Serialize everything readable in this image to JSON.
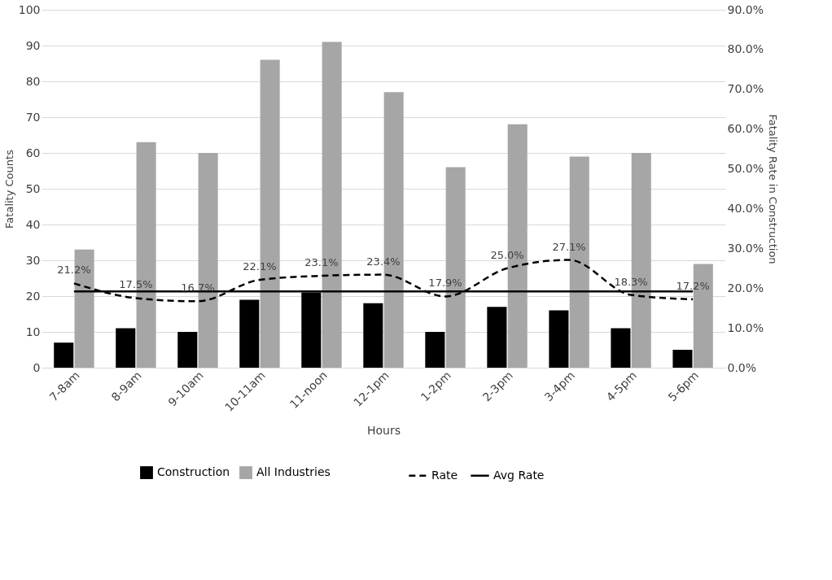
{
  "chart_data": {
    "type": "bar",
    "xlabel": "Hours",
    "ylabel": "Fatality Counts",
    "y2label": "Fatality Rate in Construction",
    "categories": [
      "7-8am",
      "8-9am",
      "9-10am",
      "10-11am",
      "11-noon",
      "12-1pm",
      "1-2pm",
      "2-3pm",
      "3-4pm",
      "4-5pm",
      "5-6pm"
    ],
    "series": [
      {
        "name": "Construction",
        "color": "#000000",
        "values": [
          7,
          11,
          10,
          19,
          21,
          18,
          10,
          17,
          16,
          11,
          5
        ]
      },
      {
        "name": "All Industries",
        "color": "#a6a6a6",
        "values": [
          33,
          63,
          60,
          86,
          91,
          77,
          56,
          68,
          59,
          60,
          29
        ]
      },
      {
        "name": "Rate",
        "type": "line",
        "axis": "y2",
        "color": "#000000",
        "line_style": "dashed",
        "values": [
          21.2,
          17.5,
          16.7,
          22.1,
          23.1,
          23.4,
          17.9,
          25.0,
          27.1,
          18.3,
          17.2
        ],
        "value_labels": [
          "21.2%",
          "17.5%",
          "16.7%",
          "22.1%",
          "23.1%",
          "23.4%",
          "17.9%",
          "25.0%",
          "27.1%",
          "18.3%",
          "17.2%"
        ]
      },
      {
        "name": "Avg Rate",
        "type": "line",
        "axis": "y2",
        "color": "#000000",
        "line_style": "solid",
        "values": [
          19.2,
          19.2,
          19.2,
          19.2,
          19.2,
          19.2,
          19.2,
          19.2,
          19.2,
          19.2,
          19.2
        ]
      }
    ],
    "ylim": [
      0,
      100
    ],
    "yticks": [
      0,
      10,
      20,
      30,
      40,
      50,
      60,
      70,
      80,
      90,
      100
    ],
    "y2lim": [
      0,
      90
    ],
    "y2ticks": [
      {
        "value": 0,
        "label": "0.0%"
      },
      {
        "value": 10,
        "label": "10.0%"
      },
      {
        "value": 20,
        "label": "20.0%"
      },
      {
        "value": 30,
        "label": "30.0%"
      },
      {
        "value": 40,
        "label": "40.0%"
      },
      {
        "value": 50,
        "label": "50.0%"
      },
      {
        "value": 60,
        "label": "60.0%"
      },
      {
        "value": 70,
        "label": "70.0%"
      },
      {
        "value": 80,
        "label": "80.0%"
      },
      {
        "value": 90,
        "label": "90.0%"
      }
    ],
    "grid": "y",
    "legend": "bottom"
  }
}
